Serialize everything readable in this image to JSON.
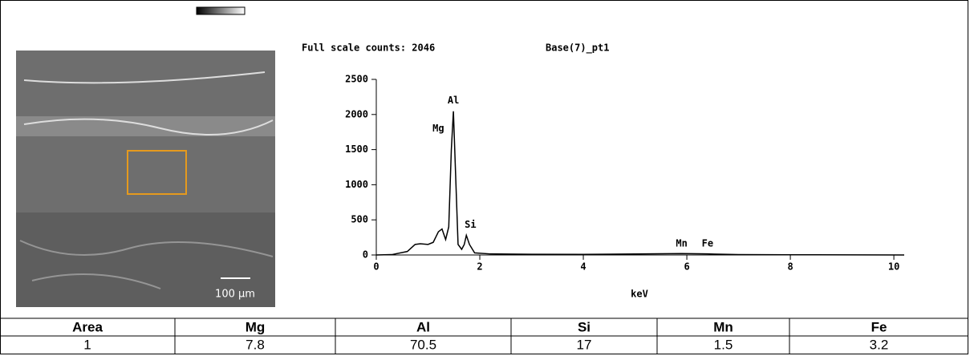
{
  "image": {
    "scale_label": "100 µm"
  },
  "chart_data": {
    "type": "line",
    "title": "Full scale counts: 2046",
    "subtitle": "Base(7)_pt1",
    "x_label": "keV",
    "x": [
      0,
      0.3,
      0.6,
      0.75,
      0.85,
      1.0,
      1.1,
      1.2,
      1.27,
      1.34,
      1.4,
      1.45,
      1.49,
      1.53,
      1.58,
      1.65,
      1.7,
      1.74,
      1.8,
      1.9,
      2.2,
      3,
      4,
      5.9,
      6.4,
      7,
      8,
      10.2
    ],
    "series": [
      {
        "name": "Base(7)_pt1",
        "color": "#000000",
        "values": [
          0,
          5,
          50,
          150,
          160,
          150,
          180,
          330,
          370,
          220,
          400,
          1500,
          2046,
          1200,
          150,
          80,
          150,
          280,
          150,
          30,
          15,
          10,
          8,
          20,
          15,
          5,
          3,
          0
        ]
      }
    ],
    "annotations": [
      {
        "text": "Al",
        "x": 1.49,
        "y": 2200
      },
      {
        "text": "Mg",
        "x": 1.2,
        "y": 1800
      },
      {
        "text": "Si",
        "x": 1.82,
        "y": 430
      },
      {
        "text": "Mn",
        "x": 5.9,
        "y": 160
      },
      {
        "text": "Fe",
        "x": 6.4,
        "y": 160
      }
    ],
    "xlim": [
      0,
      10.2
    ],
    "ylim": [
      0,
      2500
    ],
    "xticks": [
      0,
      2,
      4,
      6,
      8,
      10
    ],
    "yticks": [
      0,
      500,
      1000,
      1500,
      2000,
      2500
    ]
  },
  "table": {
    "header": [
      "Area",
      "Mg",
      "Al",
      "Si",
      "Mn",
      "Fe"
    ],
    "rows": [
      [
        1,
        7.8,
        70.5,
        17,
        1.5,
        3.2
      ]
    ]
  }
}
